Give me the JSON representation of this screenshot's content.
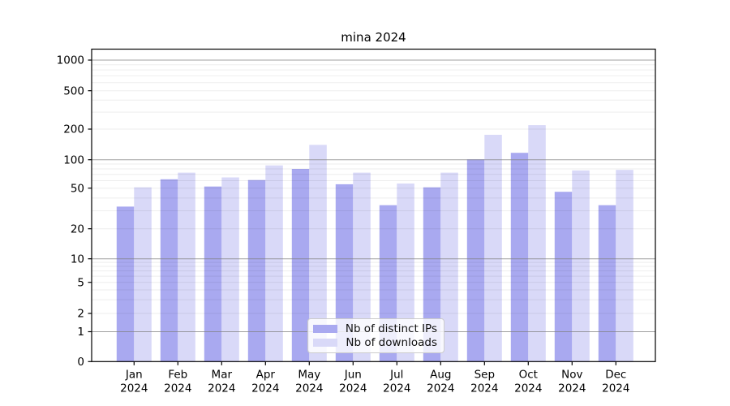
{
  "title": "mina 2024",
  "legend": {
    "items": [
      {
        "label": "Nb of distinct IPs",
        "color": "#a9a9f0"
      },
      {
        "label": "Nb of downloads",
        "color": "#d9d9f8"
      }
    ]
  },
  "chart_data": {
    "type": "bar",
    "title": "mina 2024",
    "categories": [
      "Jan 2024",
      "Feb 2024",
      "Mar 2024",
      "Apr 2024",
      "May 2024",
      "Jun 2024",
      "Jul 2024",
      "Aug 2024",
      "Sep 2024",
      "Oct 2024",
      "Nov 2024",
      "Dec 2024"
    ],
    "series": [
      {
        "name": "Nb of distinct IPs",
        "color": "#a9a9f0",
        "values": [
          33,
          62,
          52,
          61,
          80,
          55,
          34,
          51,
          101,
          117,
          46,
          34
        ]
      },
      {
        "name": "Nb of downloads",
        "color": "#d9d9f8",
        "values": [
          51,
          73,
          65,
          87,
          140,
          73,
          56,
          73,
          176,
          220,
          77,
          78
        ]
      }
    ],
    "xlabel": "",
    "ylabel": "",
    "yscale": "symlog",
    "yticks": [
      0,
      1,
      2,
      5,
      10,
      20,
      50,
      100,
      200,
      500,
      1000
    ],
    "ylim": [
      0,
      1250
    ],
    "grid": true,
    "grid_above_bars": true,
    "legend_position": "lower center"
  }
}
